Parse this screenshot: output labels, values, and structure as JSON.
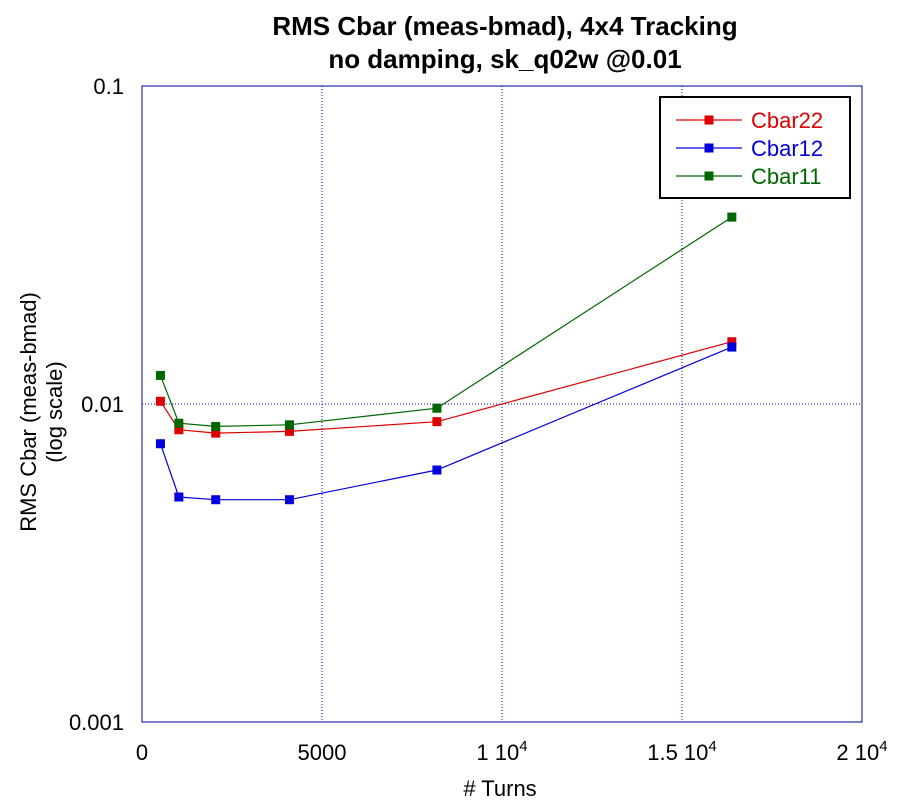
{
  "chart_data": {
    "type": "line",
    "title_lines": [
      "RMS Cbar (meas-bmad), 4x4 Tracking",
      "no damping, sk_q02w @0.01"
    ],
    "xlabel": "# Turns",
    "ylabel_lines": [
      "RMS Cbar (meas-bmad)",
      "(log scale)"
    ],
    "x_scale": "linear",
    "y_scale": "log",
    "xlim": [
      0,
      20000
    ],
    "ylim": [
      0.001,
      0.1
    ],
    "grid": true,
    "legend_position": "top-right",
    "x_ticks": [
      {
        "value": 0,
        "base": "0",
        "exp": ""
      },
      {
        "value": 5000,
        "base": "5000",
        "exp": ""
      },
      {
        "value": 10000,
        "base": "1 10",
        "exp": "4"
      },
      {
        "value": 15000,
        "base": "1.5 10",
        "exp": "4"
      },
      {
        "value": 20000,
        "base": "2 10",
        "exp": "4"
      }
    ],
    "y_ticks": [
      {
        "value": 0.001,
        "label": "0.001"
      },
      {
        "value": 0.01,
        "label": "0.01"
      },
      {
        "value": 0.1,
        "label": "0.1"
      }
    ],
    "series": [
      {
        "name": "Cbar22",
        "color": "#dd0000",
        "x": [
          512,
          1024,
          2048,
          4096,
          8192,
          16384
        ],
        "y": [
          0.0102,
          0.0083,
          0.0081,
          0.0082,
          0.0088,
          0.0157
        ]
      },
      {
        "name": "Cbar12",
        "color": "#0000dd",
        "x": [
          512,
          1024,
          2048,
          4096,
          8192,
          16384
        ],
        "y": [
          0.0075,
          0.0051,
          0.005,
          0.005,
          0.0062,
          0.0151
        ]
      },
      {
        "name": "Cbar11",
        "color": "#006600",
        "x": [
          512,
          1024,
          2048,
          4096,
          8192,
          16384
        ],
        "y": [
          0.0123,
          0.0087,
          0.0085,
          0.0086,
          0.0097,
          0.0387
        ]
      }
    ]
  }
}
